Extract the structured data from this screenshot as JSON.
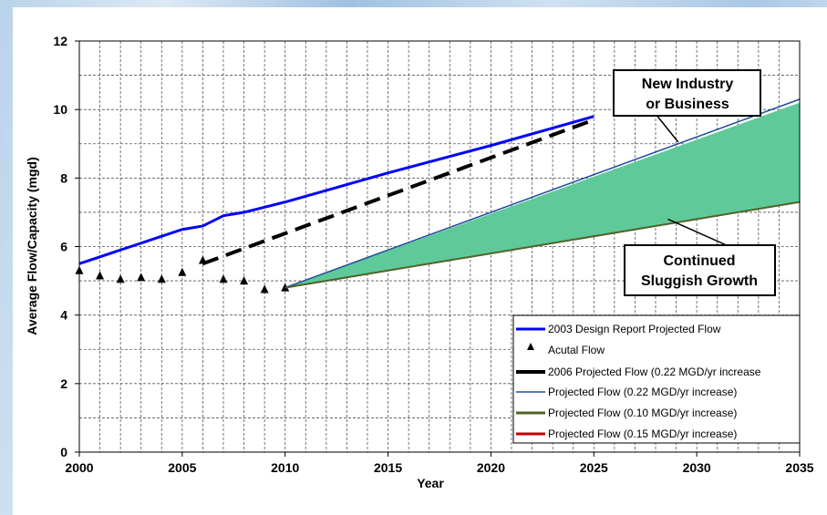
{
  "chart_data": {
    "type": "line",
    "xlabel": "Year",
    "ylabel": "Average Flow/Capacity (mgd)",
    "xlim": [
      2000,
      2035
    ],
    "ylim": [
      0,
      12
    ],
    "x_ticks": [
      "2000",
      "2005",
      "2010",
      "2015",
      "2020",
      "2025",
      "2030",
      "2035"
    ],
    "y_ticks": [
      "0",
      "2",
      "4",
      "6",
      "8",
      "10",
      "12"
    ],
    "grid": true,
    "legend_position": "bottom-right",
    "series": [
      {
        "name": "2003 Design Report Projected Flow",
        "style": "solid",
        "color": "#0000ff",
        "x": [
          2000,
          2001,
          2002,
          2003,
          2004,
          2005,
          2006,
          2007,
          2008,
          2009,
          2010,
          2015,
          2020,
          2025
        ],
        "y": [
          5.5,
          5.7,
          5.9,
          6.1,
          6.3,
          6.5,
          6.6,
          6.9,
          7.0,
          7.15,
          7.3,
          8.15,
          8.95,
          9.8
        ]
      },
      {
        "name": "Acutal Flow",
        "style": "markers",
        "color": "#000000",
        "x": [
          2000,
          2001,
          2002,
          2003,
          2004,
          2005,
          2006,
          2007,
          2008,
          2009,
          2010
        ],
        "y": [
          5.3,
          5.15,
          5.05,
          5.1,
          5.05,
          5.25,
          5.6,
          5.05,
          5.0,
          4.75,
          4.8
        ]
      },
      {
        "name": "2006 Projected Flow (0.22  MGD/yr increase",
        "style": "dashed",
        "color": "#000000",
        "x": [
          2006,
          2025
        ],
        "y": [
          5.5,
          9.7
        ]
      },
      {
        "name": "Projected Flow (0.22 MGD/yr increase)",
        "style": "solid",
        "color": "#1f4e9c",
        "x": [
          2010,
          2035
        ],
        "y": [
          4.8,
          10.3
        ]
      },
      {
        "name": "Projected Flow (0.10 MGD/yr increase)",
        "style": "solid",
        "color": "#4f6228",
        "x": [
          2010,
          2035
        ],
        "y": [
          4.8,
          7.3
        ]
      },
      {
        "name": "Projected Flow (0.15 MGD/yr increase)",
        "style": "solid",
        "color": "#c00000",
        "x": [],
        "y": []
      }
    ],
    "shaded_band": {
      "color": "#5fc99a",
      "x": [
        2010,
        2035
      ],
      "upper": [
        4.8,
        10.2
      ],
      "lower": [
        4.8,
        7.3
      ]
    },
    "annotations": [
      {
        "lines": [
          "New Industry",
          "or Business"
        ],
        "pointer_to": {
          "x": 2029.1,
          "y": 9.05
        }
      },
      {
        "lines": [
          "Continued",
          "Sluggish Growth"
        ],
        "pointer_to": {
          "x": 2028.6,
          "y": 6.8
        }
      }
    ]
  }
}
